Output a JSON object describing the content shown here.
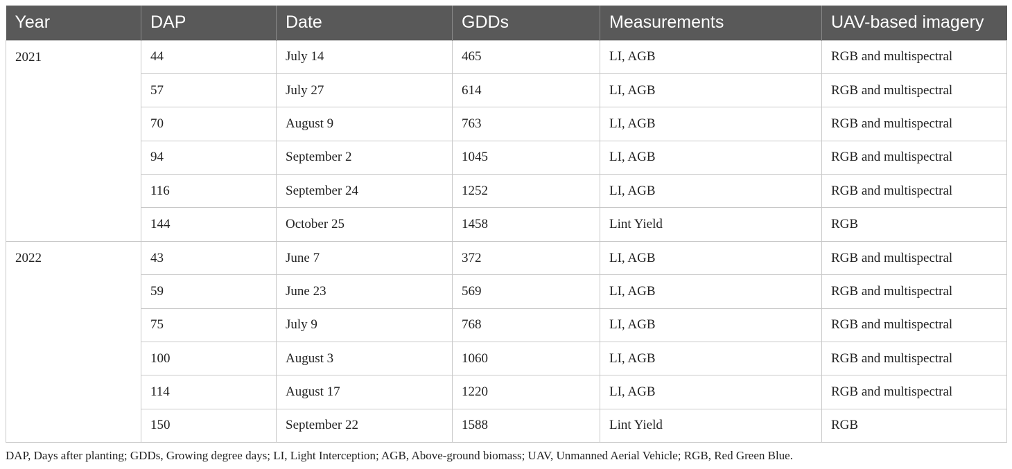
{
  "table": {
    "headers": [
      "Year",
      "DAP",
      "Date",
      "GDDs",
      "Measurements",
      "UAV-based imagery"
    ],
    "groups": [
      {
        "year": "2021",
        "rows": [
          [
            "44",
            "July 14",
            "465",
            "LI, AGB",
            "RGB and multispectral"
          ],
          [
            "57",
            "July 27",
            "614",
            "LI, AGB",
            "RGB and multispectral"
          ],
          [
            "70",
            "August 9",
            "763",
            "LI, AGB",
            "RGB and multispectral"
          ],
          [
            "94",
            "September 2",
            "1045",
            "LI, AGB",
            "RGB and multispectral"
          ],
          [
            "116",
            "September 24",
            "1252",
            "LI, AGB",
            "RGB and multispectral"
          ],
          [
            "144",
            "October 25",
            "1458",
            "Lint Yield",
            "RGB"
          ]
        ]
      },
      {
        "year": "2022",
        "rows": [
          [
            "43",
            "June 7",
            "372",
            "LI, AGB",
            "RGB and multispectral"
          ],
          [
            "59",
            "June 23",
            "569",
            "LI, AGB",
            "RGB and multispectral"
          ],
          [
            "75",
            "July 9",
            "768",
            "LI, AGB",
            "RGB and multispectral"
          ],
          [
            "100",
            "August 3",
            "1060",
            "LI, AGB",
            "RGB and multispectral"
          ],
          [
            "114",
            "August 17",
            "1220",
            "LI, AGB",
            "RGB and multispectral"
          ],
          [
            "150",
            "September 22",
            "1588",
            "Lint Yield",
            "RGB"
          ]
        ]
      }
    ]
  },
  "footnote": "DAP, Days after planting; GDDs, Growing degree days; LI, Light Interception; AGB, Above-ground biomass; UAV, Unmanned Aerial Vehicle; RGB, Red Green Blue.",
  "colors": {
    "header_bg": "#595959",
    "header_text": "#ffffff",
    "grid_line": "#c8c8c8"
  }
}
